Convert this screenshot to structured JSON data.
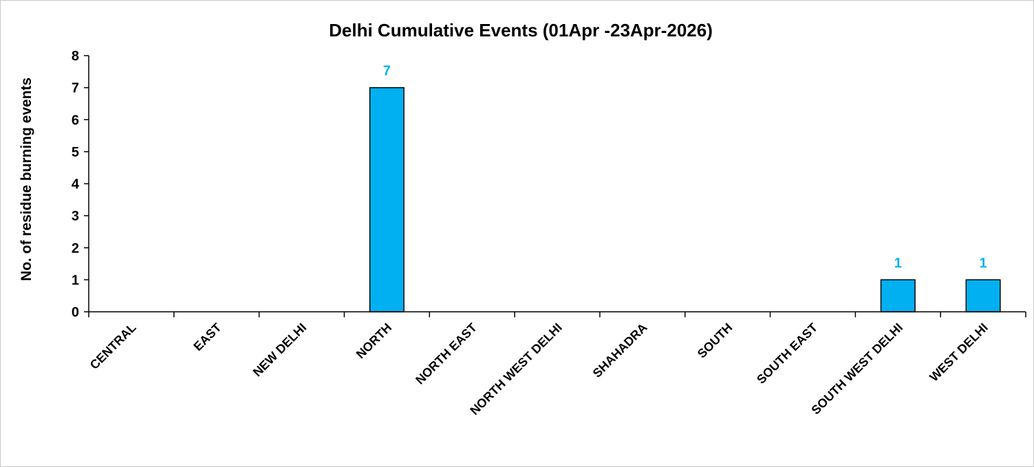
{
  "chart_data": {
    "type": "bar",
    "title": "Delhi Cumulative Events (01Apr -23Apr-2026)",
    "xlabel": "",
    "ylabel": "No. of residue burning events",
    "categories": [
      "CENTRAL",
      "EAST",
      "NEW DELHI",
      "NORTH",
      "NORTH EAST",
      "NORTH WEST DELHI",
      "SHAHADRA",
      "SOUTH",
      "SOUTH EAST",
      "SOUTH WEST DELHI",
      "WEST DELHI"
    ],
    "values": [
      0,
      0,
      0,
      7,
      0,
      0,
      0,
      0,
      0,
      1,
      1
    ],
    "data_labels": [
      "",
      "",
      "",
      "7",
      "",
      "",
      "",
      "",
      "",
      "1",
      "1"
    ],
    "ylim": [
      0,
      8
    ],
    "yticks": [
      "0",
      "1",
      "2",
      "3",
      "4",
      "5",
      "6",
      "7",
      "8"
    ],
    "grid": false,
    "legend": "none",
    "colors": {
      "bar_fill": "#00b0f0",
      "bar_stroke": "#000000",
      "data_label": "#00b0f0",
      "axis": "#000000"
    }
  }
}
